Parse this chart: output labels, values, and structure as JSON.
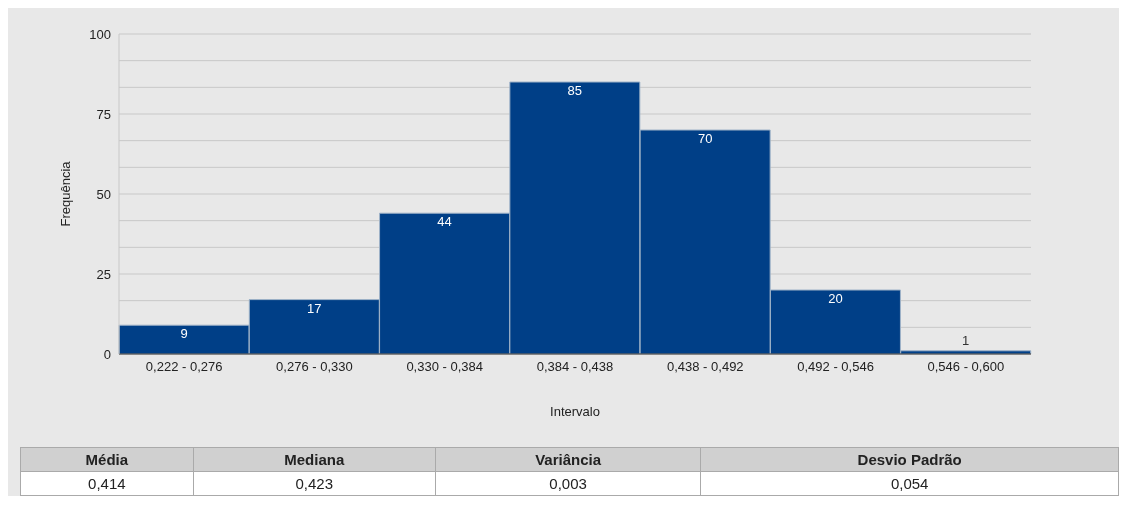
{
  "chart_data": {
    "type": "bar",
    "xlabel": "Intervalo",
    "ylabel": "Frequência",
    "categories": [
      "0,222 - 0,276",
      "0,276 - 0,330",
      "0,330 - 0,384",
      "0,384 - 0,438",
      "0,438 - 0,492",
      "0,492 - 0,546",
      "0,546 - 0,600"
    ],
    "values": [
      9,
      17,
      44,
      85,
      70,
      20,
      1
    ],
    "color": "#003f87",
    "ylim": [
      0,
      100
    ],
    "yticks": [
      0,
      {
        "value": 8.33,
        "label": null
      },
      {
        "value": 16.67,
        "label": null
      },
      25,
      {
        "value": 33.33,
        "label": null
      },
      {
        "value": 41.67,
        "label": null
      },
      50,
      {
        "value": 58.33,
        "label": null
      },
      {
        "value": 66.67,
        "label": null
      },
      75,
      {
        "value": 83.33,
        "label": null
      },
      {
        "value": 91.67,
        "label": null
      },
      100
    ],
    "grid": "y",
    "data_labels": true,
    "annotations": [
      "Média",
      "Mediana",
      "Variância",
      "Desvio Padrão",
      "0,414",
      "0,423",
      "0,003",
      "0,054"
    ]
  }
}
